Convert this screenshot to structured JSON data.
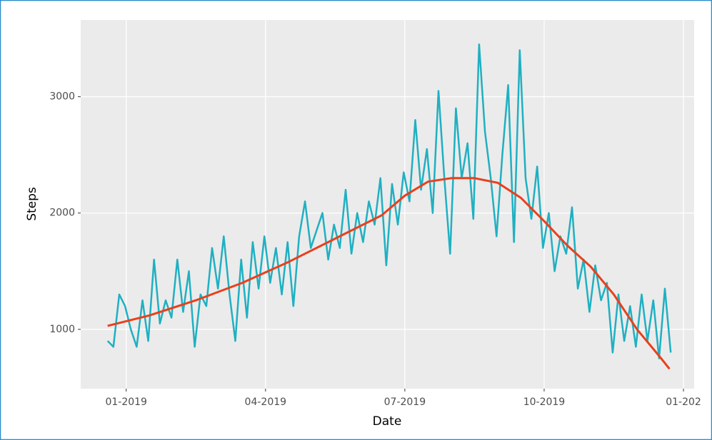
{
  "chart_data": {
    "type": "line",
    "x_label": "Date",
    "y_label": "Steps",
    "xlim": [
      -0.98,
      12.23
    ],
    "ylim": [
      490,
      3660
    ],
    "xticks": [
      {
        "value": 0,
        "label": "01-2019"
      },
      {
        "value": 3,
        "label": "04-2019"
      },
      {
        "value": 6,
        "label": "07-2019"
      },
      {
        "value": 9,
        "label": "10-2019"
      },
      {
        "value": 12,
        "label": "01-202"
      }
    ],
    "yticks": [
      1000,
      2000,
      3000
    ],
    "grid": true,
    "series": [
      {
        "color": "#1fb0c2",
        "x": [
          -0.4,
          -0.275,
          -0.15,
          -0.025,
          0.1,
          0.225,
          0.35,
          0.475,
          0.6,
          0.725,
          0.85,
          0.975,
          1.1,
          1.225,
          1.35,
          1.475,
          1.6,
          1.725,
          1.85,
          1.975,
          2.1,
          2.225,
          2.35,
          2.475,
          2.6,
          2.725,
          2.85,
          2.975,
          3.1,
          3.225,
          3.35,
          3.475,
          3.6,
          3.725,
          3.85,
          3.975,
          4.1,
          4.225,
          4.35,
          4.475,
          4.6,
          4.725,
          4.85,
          4.975,
          5.1,
          5.225,
          5.35,
          5.475,
          5.6,
          5.725,
          5.85,
          5.975,
          6.1,
          6.225,
          6.35,
          6.475,
          6.6,
          6.725,
          6.85,
          6.975,
          7.1,
          7.225,
          7.35,
          7.475,
          7.6,
          7.725,
          7.85,
          7.975,
          8.1,
          8.225,
          8.35,
          8.475,
          8.6,
          8.725,
          8.85,
          8.975,
          9.1,
          9.225,
          9.35,
          9.475,
          9.6,
          9.725,
          9.85,
          9.975,
          10.1,
          10.225,
          10.35,
          10.475,
          10.6,
          10.725,
          10.85,
          10.975,
          11.1,
          11.225,
          11.35,
          11.475,
          11.6,
          11.725
        ],
        "values": [
          900,
          850,
          1300,
          1200,
          1000,
          850,
          1250,
          900,
          1600,
          1050,
          1250,
          1100,
          1600,
          1150,
          1500,
          850,
          1300,
          1200,
          1700,
          1350,
          1800,
          1300,
          900,
          1600,
          1100,
          1750,
          1350,
          1800,
          1400,
          1700,
          1300,
          1750,
          1200,
          1800,
          2100,
          1700,
          1850,
          2000,
          1600,
          1900,
          1700,
          2200,
          1650,
          2000,
          1750,
          2100,
          1900,
          2300,
          1550,
          2250,
          1900,
          2350,
          2100,
          2800,
          2200,
          2550,
          2000,
          3050,
          2300,
          1650,
          2900,
          2300,
          2600,
          1950,
          3450,
          2700,
          2300,
          1800,
          2500,
          3100,
          1750,
          3400,
          2300,
          1950,
          2400,
          1700,
          2000,
          1500,
          1800,
          1650,
          2050,
          1350,
          1600,
          1150,
          1550,
          1250,
          1400,
          800,
          1300,
          900,
          1200,
          850,
          1300,
          900,
          1250,
          750,
          1350,
          800
        ]
      },
      {
        "color": "#e8401c",
        "x": [
          -0.4,
          0.5,
          1.5,
          2.5,
          3.5,
          4.5,
          5.5,
          6,
          6.5,
          7,
          7.5,
          8,
          8.5,
          9,
          9.5,
          10,
          10.5,
          11,
          11.5,
          11.7
        ],
        "values": [
          1030,
          1120,
          1250,
          1400,
          1580,
          1780,
          1980,
          2150,
          2270,
          2300,
          2300,
          2260,
          2130,
          1930,
          1720,
          1540,
          1300,
          1000,
          760,
          660
        ]
      }
    ]
  }
}
